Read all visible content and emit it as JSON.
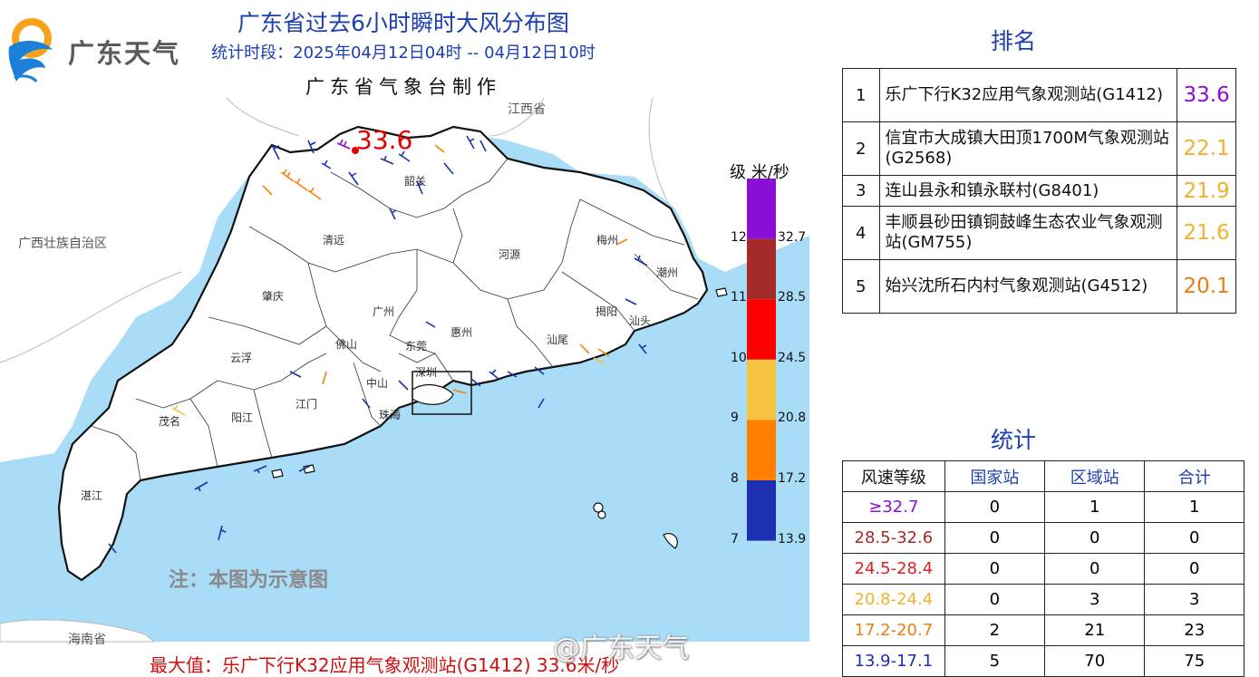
{
  "header": {
    "logo_text": "广东天气",
    "title": "广东省过去6小时瞬时大风分布图",
    "period": "统计时段：2025年04月12日04时 -- 04月12日10时",
    "maker": "广东省气象台制作"
  },
  "map": {
    "max_marker_value": "33.6",
    "note": "注：本图为示意图",
    "bottom_max": "最大值：乐广下行K32应用气象观测站(G1412) 33.6米/秒",
    "watermark": "@广东天气",
    "neighbors": {
      "jiangxi": "江西省",
      "guangxi": "广西壮族自治区",
      "hainan": "海南省"
    },
    "cities": {
      "shaoguan": "韶关",
      "qingyuan": "清远",
      "heyuan": "河源",
      "meizhou": "梅州",
      "chaozhou": "潮州",
      "zhaoqing": "肇庆",
      "guangzhou": "广州",
      "huizhou": "惠州",
      "jieyang": "揭阳",
      "shantou": "汕头",
      "shanwei": "汕尾",
      "foshan": "佛山",
      "dongguan": "东莞",
      "yunfu": "云浮",
      "shenzhen": "深圳",
      "zhongshan": "中山",
      "jiangmen": "江门",
      "maoming": "茂名",
      "yangjiang": "阳江",
      "zhuhai": "珠海",
      "zhanjiang": "湛江"
    }
  },
  "legend": {
    "header": "级  米/秒",
    "bands": [
      {
        "level": "12",
        "value": "32.7",
        "color": "#8b0fd6"
      },
      {
        "level": "11",
        "value": "28.5",
        "color": "#a52a2a"
      },
      {
        "level": "10",
        "value": "24.5",
        "color": "#ff0000"
      },
      {
        "level": "9",
        "value": "20.8",
        "color": "#f5c242"
      },
      {
        "level": "8",
        "value": "17.2",
        "color": "#ff7f00"
      },
      {
        "level": "7",
        "value": "13.9",
        "color": "#1c2fb0"
      }
    ]
  },
  "ranking": {
    "title": "排名",
    "rows": [
      {
        "rank": "1",
        "name": "乐广下行K32应用气象观测站(G1412)",
        "value": "33.6",
        "color": "#8b0fd6"
      },
      {
        "rank": "2",
        "name": "信宜市大成镇大田顶1700M气象观测站(G2568)",
        "value": "22.1",
        "color": "#f0b030"
      },
      {
        "rank": "3",
        "name": "连山县永和镇永联村(G8401)",
        "value": "21.9",
        "color": "#f0b030"
      },
      {
        "rank": "4",
        "name": "丰顺县砂田镇铜鼓峰生态农业气象观测站(GM755)",
        "value": "21.6",
        "color": "#f0b030"
      },
      {
        "rank": "5",
        "name": "始兴沈所石内村气象观测站(G4512)",
        "value": "20.1",
        "color": "#e87f10"
      }
    ]
  },
  "statistics": {
    "title": "统计",
    "headers": [
      "风速等级",
      "国家站",
      "区域站",
      "合计"
    ],
    "rows": [
      {
        "grade": "≥32.7",
        "color": "#8b0fd6",
        "national": "0",
        "regional": "1",
        "total": "1"
      },
      {
        "grade": "28.5-32.6",
        "color": "#a52a2a",
        "national": "0",
        "regional": "0",
        "total": "0"
      },
      {
        "grade": "24.5-28.4",
        "color": "#e02020",
        "national": "0",
        "regional": "0",
        "total": "0"
      },
      {
        "grade": "20.8-24.4",
        "color": "#f0b030",
        "national": "0",
        "regional": "3",
        "total": "3"
      },
      {
        "grade": "17.2-20.7",
        "color": "#e87f10",
        "national": "2",
        "regional": "21",
        "total": "23"
      },
      {
        "grade": "13.9-17.1",
        "color": "#1c2fb0",
        "national": "5",
        "regional": "70",
        "total": "75"
      }
    ]
  }
}
